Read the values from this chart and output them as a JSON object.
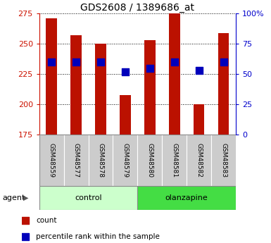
{
  "title": "GDS2608 / 1389686_at",
  "samples": [
    "GSM48559",
    "GSM48577",
    "GSM48578",
    "GSM48579",
    "GSM48580",
    "GSM48581",
    "GSM48582",
    "GSM48583"
  ],
  "count_values": [
    271,
    257,
    250,
    208,
    253,
    278,
    200,
    259
  ],
  "percentile_values": [
    60,
    60,
    60,
    52,
    55,
    60,
    53,
    60
  ],
  "ylim_left": [
    175,
    275
  ],
  "ylim_right": [
    0,
    100
  ],
  "yticks_left": [
    175,
    200,
    225,
    250,
    275
  ],
  "yticks_right": [
    0,
    25,
    50,
    75,
    100
  ],
  "groups": [
    {
      "label": "control",
      "indices": [
        0,
        1,
        2,
        3
      ],
      "color": "#ccffcc"
    },
    {
      "label": "olanzapine",
      "indices": [
        4,
        5,
        6,
        7
      ],
      "color": "#44dd44"
    }
  ],
  "bar_color": "#bb1100",
  "dot_color": "#0000bb",
  "bar_width": 0.45,
  "dot_size": 55,
  "tick_label_color_left": "#cc1100",
  "tick_label_color_right": "#0000cc",
  "sample_box_color": "#cccccc",
  "agent_label": "agent",
  "legend_count_label": "count",
  "legend_pct_label": "percentile rank within the sample"
}
